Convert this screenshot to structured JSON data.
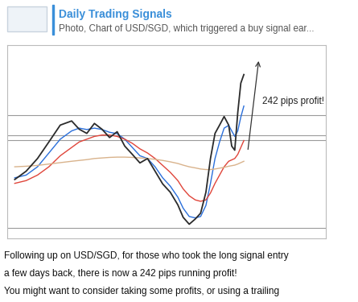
{
  "header": {
    "channel": "Daily Trading Signals",
    "caption": "Photo, Chart of USD/SGD, which triggered a buy signal ear..."
  },
  "chart_data": {
    "type": "line",
    "x": [
      10,
      25,
      40,
      55,
      70,
      85,
      95,
      105,
      115,
      125,
      135,
      145,
      155,
      165,
      175,
      185,
      195,
      205,
      215,
      225,
      232,
      240,
      248,
      255,
      262,
      268,
      274,
      280,
      286,
      292,
      296,
      300,
      304,
      308,
      312
    ],
    "series": [
      {
        "color": "#2b2b2b",
        "values": [
          1.3314,
          1.3344,
          1.339,
          1.345,
          1.3511,
          1.3526,
          1.3496,
          1.3481,
          1.3517,
          1.3496,
          1.3466,
          1.3487,
          1.3435,
          1.3405,
          1.3374,
          1.339,
          1.3344,
          1.3298,
          1.3268,
          1.3222,
          1.3177,
          1.3152,
          1.3171,
          1.3192,
          1.3268,
          1.339,
          1.3481,
          1.3511,
          1.3542,
          1.3511,
          1.3435,
          1.342,
          1.3557,
          1.3663,
          1.3694
        ]
      },
      {
        "color": "#2a6fdb",
        "values": [
          1.332,
          1.333,
          1.336,
          1.341,
          1.346,
          1.349,
          1.35,
          1.3495,
          1.35,
          1.3495,
          1.3485,
          1.348,
          1.346,
          1.343,
          1.34,
          1.339,
          1.336,
          1.332,
          1.329,
          1.325,
          1.321,
          1.318,
          1.3175,
          1.318,
          1.322,
          1.33,
          1.339,
          1.345,
          1.35,
          1.351,
          1.349,
          1.347,
          1.349,
          1.354,
          1.358
        ]
      },
      {
        "color": "#e0453a",
        "values": [
          1.33,
          1.331,
          1.333,
          1.336,
          1.34,
          1.343,
          1.345,
          1.346,
          1.347,
          1.3475,
          1.3475,
          1.347,
          1.346,
          1.3445,
          1.3425,
          1.341,
          1.339,
          1.3365,
          1.334,
          1.331,
          1.328,
          1.3255,
          1.324,
          1.3235,
          1.324,
          1.3265,
          1.33,
          1.333,
          1.336,
          1.338,
          1.3385,
          1.339,
          1.3405,
          1.343,
          1.3455
        ]
      },
      {
        "color": "#d9b38c",
        "values": [
          1.336,
          1.3362,
          1.3365,
          1.337,
          1.3375,
          1.338,
          1.3383,
          1.3386,
          1.339,
          1.3392,
          1.3394,
          1.3395,
          1.3395,
          1.3394,
          1.3392,
          1.339,
          1.3387,
          1.3383,
          1.3378,
          1.3372,
          1.3366,
          1.336,
          1.3356,
          1.3352,
          1.335,
          1.335,
          1.3352,
          1.3355,
          1.3358,
          1.3362,
          1.3364,
          1.3366,
          1.337,
          1.3375,
          1.338
        ]
      }
    ],
    "levels": [
      1.3548,
      1.3475,
      1.3456,
      1.314
    ],
    "annotations": [
      "242 pips profit!"
    ],
    "xlim": [
      0,
      420
    ],
    "ylim": [
      1.31,
      1.38
    ],
    "tick_labels": false,
    "grid": false
  },
  "message": {
    "lines": [
      "Following up on USD/SGD, for those who took the long signal entry",
      "a few days back, there is now a 242 pips running profit!",
      "You might want to consider taking some profits, or using a trailing"
    ]
  }
}
